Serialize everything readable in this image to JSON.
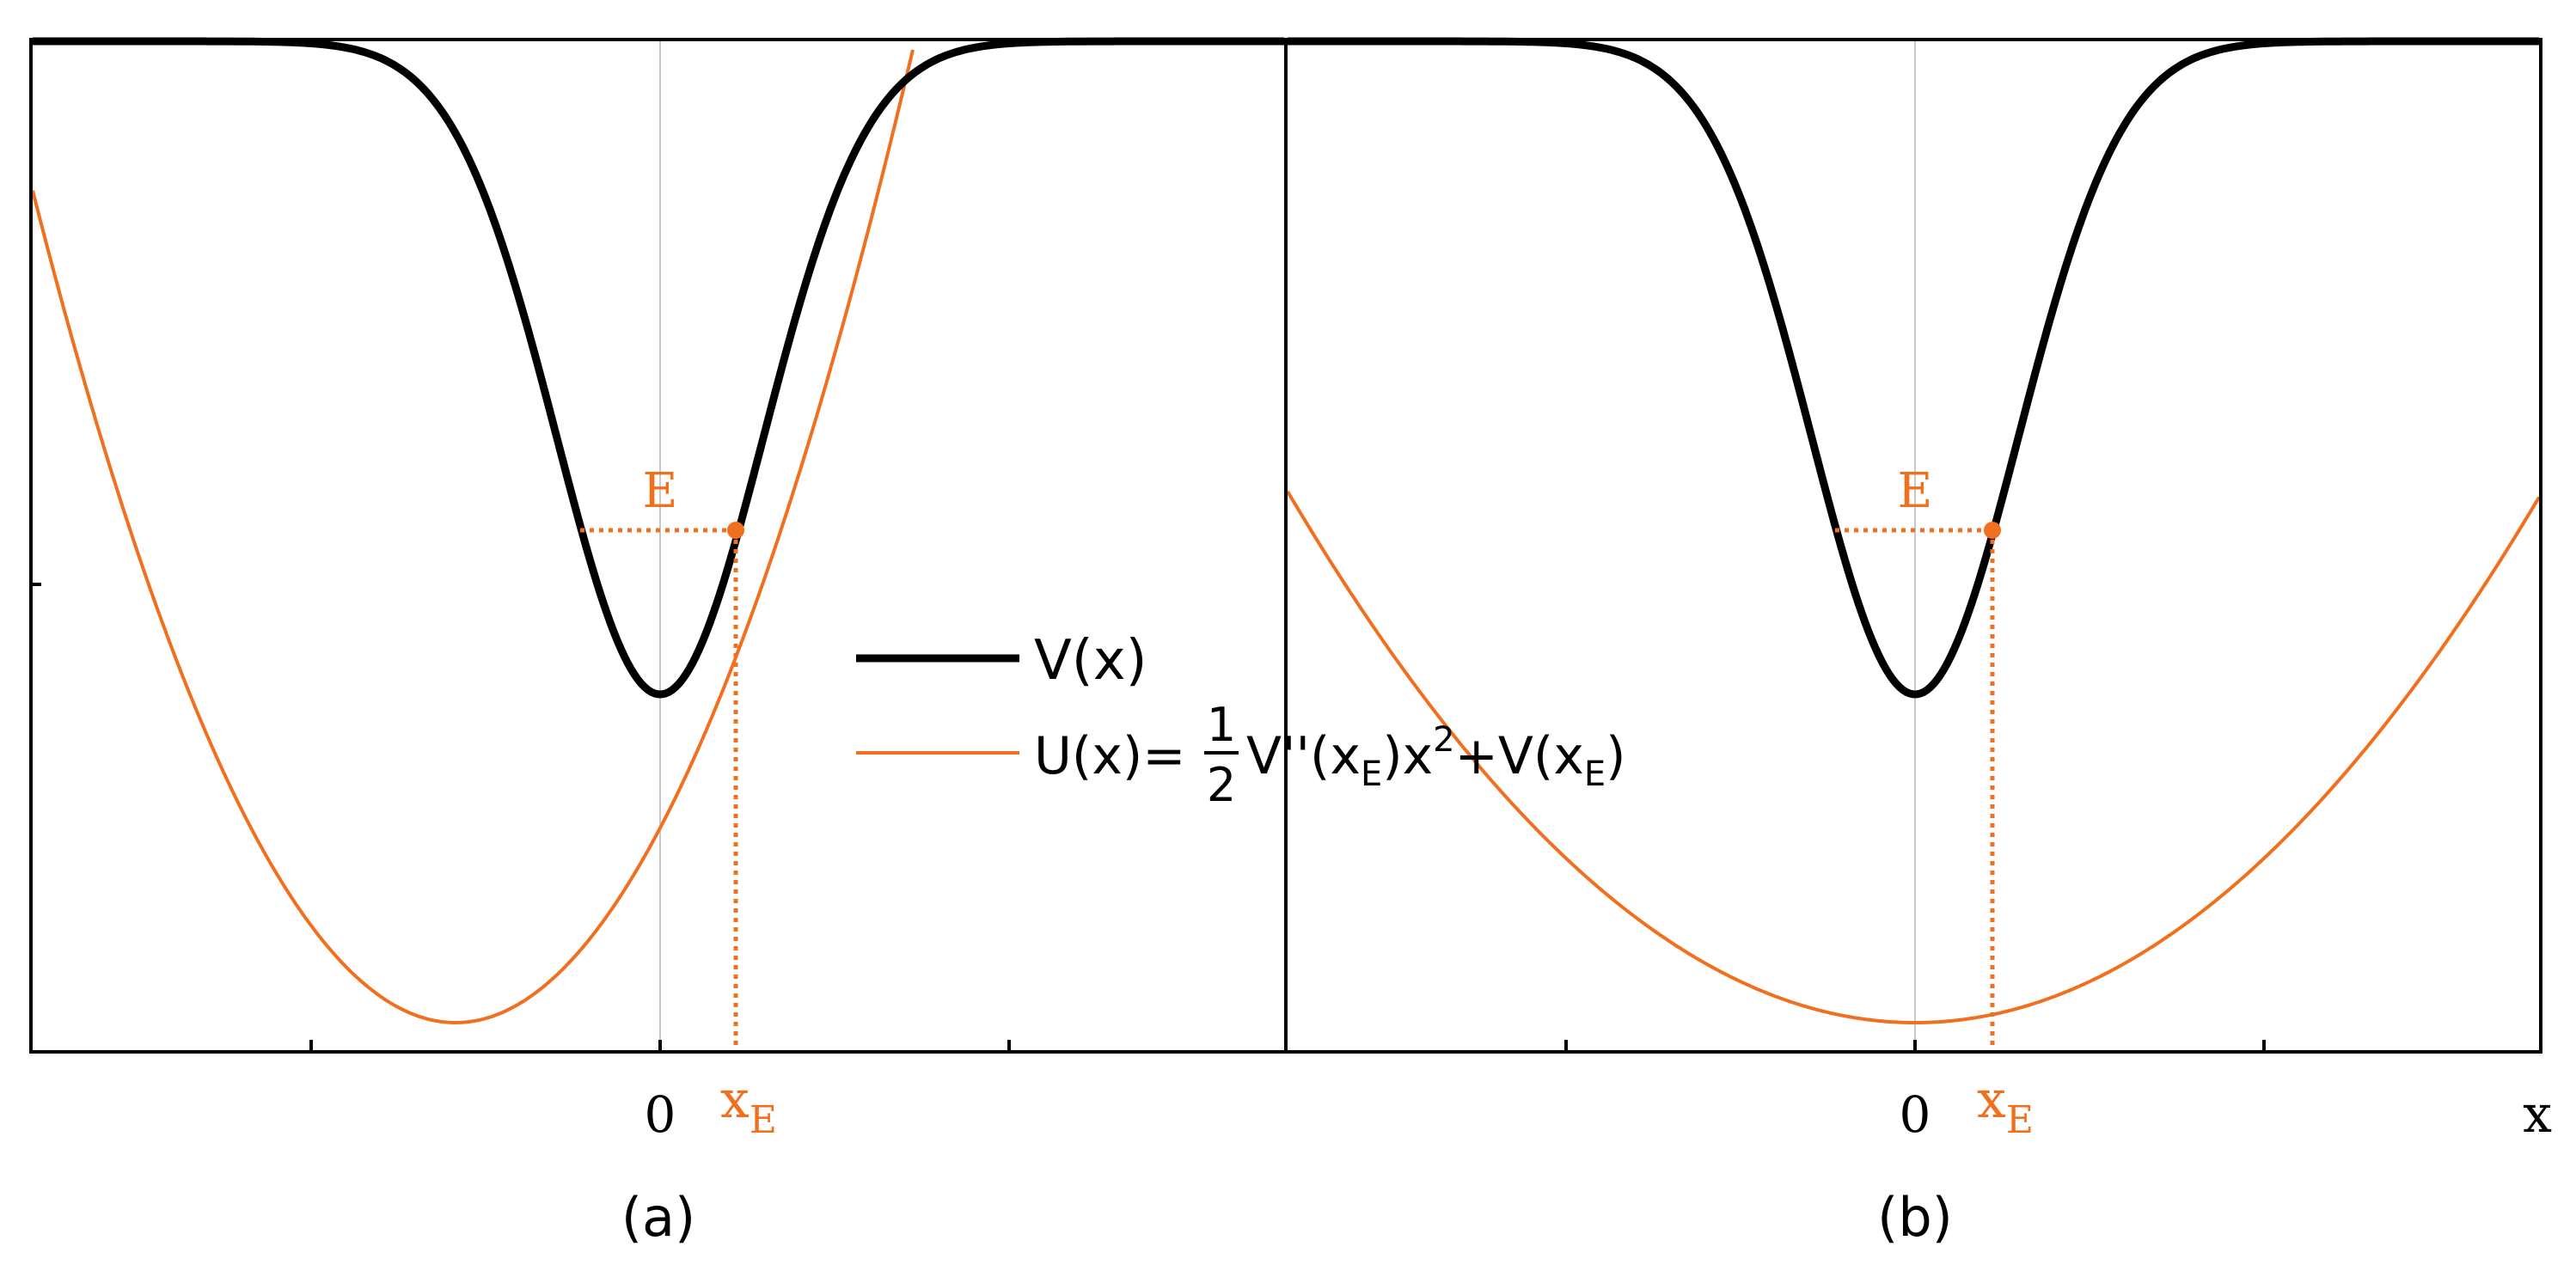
{
  "colors": {
    "potential": "#000000",
    "approximation": "#f07020",
    "axis": "#000000",
    "center_line": "#c8c8c8"
  },
  "panels": [
    {
      "label": "(a)",
      "origin_label": "0",
      "xE_label": "x",
      "xE_subscript": "E",
      "energy_label": "E"
    },
    {
      "label": "(b)",
      "origin_label": "0",
      "xE_label": "x",
      "xE_subscript": "E",
      "energy_label": "E",
      "x_axis_label": "x"
    }
  ],
  "legend": {
    "v_label": "V(x)",
    "u_lhs": "U(x)=",
    "u_frac_num": "1",
    "u_frac_den": "2",
    "u_rhs_1": "V''(x",
    "u_sub_1": "E",
    "u_rhs_2": ")x",
    "u_sup": "2",
    "u_rhs_3": "+V(x",
    "u_sub_2": "E",
    "u_rhs_4": ")"
  }
}
